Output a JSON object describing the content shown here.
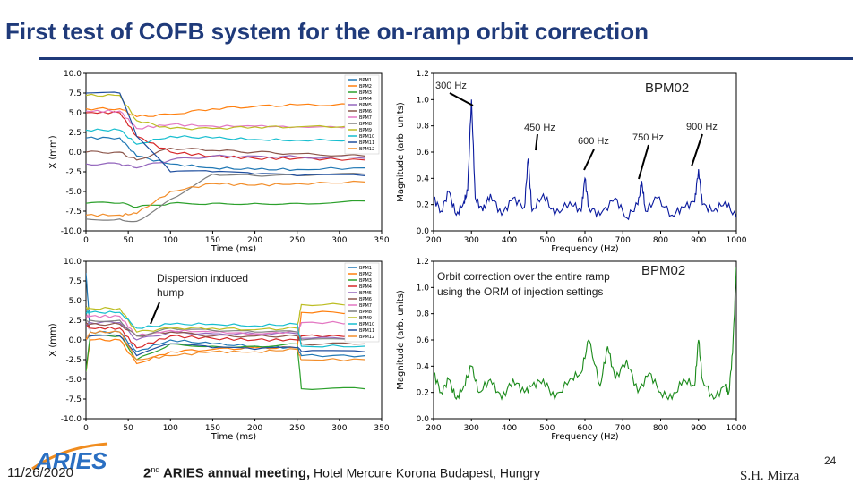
{
  "slide": {
    "title": "First test of COFB system for the on-ramp orbit correction",
    "date": "11/26/2020",
    "meeting_ord": "2",
    "meeting_sup": "nd",
    "meeting_main": " ARIES annual meeting,",
    "meeting_rest": " Hotel Mercure Korona Budapest, Hungry",
    "author": "S.H. Mirza",
    "page": "24",
    "logo_text": "ARIES"
  },
  "annotations": {
    "hz300": "300 Hz",
    "hz450": "450 Hz",
    "hz600": "600 Hz",
    "hz750": "750 Hz",
    "hz900": "900 Hz",
    "bpm_top": "BPM02",
    "bpm_bottom": "BPM02",
    "dispersion_1": "Dispersion induced",
    "dispersion_2": "hump",
    "orbit_1": "Orbit correction over the entire ramp",
    "orbit_2": "using the ORM of injection settings"
  },
  "chart_data": [
    {
      "type": "line",
      "xlabel": "Time (ms)",
      "ylabel": "X (mm)",
      "xlim": [
        0,
        350
      ],
      "ylim": [
        -10,
        10
      ],
      "xticks": [
        0,
        50,
        100,
        150,
        200,
        250,
        300,
        350
      ],
      "yticks": [
        10.0,
        7.5,
        5.0,
        2.5,
        0.0,
        -2.5,
        -5.0,
        -7.5,
        -10.0
      ],
      "legend": "top-right",
      "series": [
        {
          "name": "BPM1",
          "color": "#1f77b4",
          "x": [
            0,
            40,
            60,
            100,
            150,
            200,
            250,
            330
          ],
          "y": [
            1.8,
            1.8,
            -0.5,
            -1.5,
            -2.0,
            -2.2,
            -2.2,
            -2.0
          ]
        },
        {
          "name": "BPM2",
          "color": "#ff7f0e",
          "x": [
            0,
            40,
            60,
            100,
            150,
            200,
            250,
            330
          ],
          "y": [
            5.5,
            5.5,
            4.5,
            4.8,
            5.5,
            5.8,
            6.0,
            6.0
          ]
        },
        {
          "name": "BPM3",
          "color": "#2ca02c",
          "x": [
            0,
            40,
            60,
            100,
            150,
            200,
            250,
            330
          ],
          "y": [
            -6.5,
            -6.5,
            -7.0,
            -6.5,
            -6.5,
            -6.5,
            -6.5,
            -6.2
          ]
        },
        {
          "name": "BPM4",
          "color": "#d62728",
          "x": [
            0,
            40,
            60,
            100,
            150,
            200,
            250,
            330
          ],
          "y": [
            5.0,
            5.0,
            2.0,
            0.0,
            -0.5,
            -0.8,
            -0.8,
            -1.0
          ]
        },
        {
          "name": "BPM5",
          "color": "#9467bd",
          "x": [
            0,
            40,
            60,
            100,
            150,
            200,
            250,
            330
          ],
          "y": [
            -1.5,
            -1.5,
            -2.0,
            -1.0,
            -0.5,
            -0.5,
            -0.6,
            -0.8
          ]
        },
        {
          "name": "BPM6",
          "color": "#8c564b",
          "x": [
            0,
            40,
            60,
            100,
            150,
            200,
            250,
            330
          ],
          "y": [
            0.0,
            0.0,
            -1.0,
            0.5,
            0.2,
            0.0,
            -0.2,
            -0.5
          ]
        },
        {
          "name": "BPM7",
          "color": "#e377c2",
          "x": [
            0,
            40,
            60,
            100,
            150,
            200,
            250,
            330
          ],
          "y": [
            5.2,
            5.2,
            3.0,
            3.5,
            3.3,
            3.3,
            3.2,
            3.2
          ]
        },
        {
          "name": "BPM8",
          "color": "#7f7f7f",
          "x": [
            0,
            40,
            60,
            100,
            150,
            200,
            250,
            330
          ],
          "y": [
            -8.5,
            -8.5,
            -8.8,
            -6.0,
            -2.8,
            -3.0,
            -3.0,
            -2.8
          ]
        },
        {
          "name": "BPM9",
          "color": "#bcbd22",
          "x": [
            0,
            40,
            60,
            100,
            150,
            200,
            250,
            330
          ],
          "y": [
            7.2,
            7.2,
            4.0,
            3.0,
            3.0,
            3.2,
            3.2,
            3.3
          ]
        },
        {
          "name": "BPM10",
          "color": "#17becf",
          "x": [
            0,
            40,
            60,
            100,
            150,
            200,
            250,
            330
          ],
          "y": [
            2.8,
            2.8,
            1.0,
            2.0,
            1.8,
            1.6,
            1.5,
            1.5
          ]
        },
        {
          "name": "BPM11",
          "color": "#1f4e9e",
          "x": [
            0,
            40,
            60,
            100,
            150,
            200,
            250,
            330
          ],
          "y": [
            7.5,
            7.5,
            2.0,
            -2.5,
            -2.5,
            -2.8,
            -3.0,
            -3.0
          ]
        },
        {
          "name": "BPM12",
          "color": "#f28e2b",
          "x": [
            0,
            40,
            60,
            100,
            150,
            200,
            250,
            330
          ],
          "y": [
            -8.0,
            -8.0,
            -7.8,
            -5.0,
            -4.0,
            -4.2,
            -4.0,
            -3.8
          ]
        }
      ]
    },
    {
      "type": "line",
      "xlabel": "Frequency (Hz)",
      "ylabel": "Magnitude (arb. units)",
      "xlim": [
        200,
        1000
      ],
      "ylim": [
        0,
        1.2
      ],
      "xticks": [
        200,
        300,
        400,
        500,
        600,
        700,
        800,
        900,
        1000
      ],
      "yticks": [
        0.0,
        0.2,
        0.4,
        0.6,
        0.8,
        1.0,
        1.2
      ],
      "series": [
        {
          "name": "",
          "color": "#0a1a9e",
          "x": [
            200,
            220,
            240,
            260,
            280,
            290,
            300,
            310,
            330,
            350,
            380,
            410,
            440,
            450,
            460,
            490,
            520,
            560,
            590,
            600,
            610,
            640,
            680,
            710,
            740,
            750,
            760,
            790,
            830,
            860,
            890,
            900,
            910,
            940,
            970,
            1000
          ],
          "y": [
            0.25,
            0.15,
            0.3,
            0.12,
            0.22,
            0.3,
            1.0,
            0.25,
            0.15,
            0.28,
            0.12,
            0.25,
            0.18,
            0.55,
            0.15,
            0.28,
            0.12,
            0.22,
            0.15,
            0.4,
            0.18,
            0.12,
            0.25,
            0.1,
            0.2,
            0.38,
            0.15,
            0.25,
            0.12,
            0.18,
            0.22,
            0.47,
            0.2,
            0.15,
            0.22,
            0.1
          ]
        }
      ]
    },
    {
      "type": "line",
      "xlabel": "Time (ms)",
      "ylabel": "X (mm)",
      "xlim": [
        0,
        350
      ],
      "ylim": [
        -10,
        10
      ],
      "xticks": [
        0,
        50,
        100,
        150,
        200,
        250,
        300,
        350
      ],
      "yticks": [
        10.0,
        7.5,
        5.0,
        2.5,
        0.0,
        -2.5,
        -5.0,
        -7.5,
        -10.0
      ],
      "legend": "top-right",
      "series": [
        {
          "name": "BPM1",
          "color": "#1f77b4",
          "x": [
            0,
            5,
            40,
            60,
            100,
            150,
            200,
            250,
            255,
            330
          ],
          "y": [
            8.5,
            1.0,
            1.0,
            -1.5,
            0.0,
            -0.5,
            -0.8,
            -1.0,
            -2.0,
            -2.0
          ]
        },
        {
          "name": "BPM2",
          "color": "#ff7f0e",
          "x": [
            0,
            5,
            40,
            60,
            100,
            150,
            200,
            250,
            255,
            330
          ],
          "y": [
            -4.0,
            0.0,
            0.0,
            -3.0,
            -1.5,
            -1.2,
            -1.0,
            -1.0,
            3.5,
            3.5
          ]
        },
        {
          "name": "BPM3",
          "color": "#2ca02c",
          "x": [
            0,
            5,
            40,
            60,
            100,
            150,
            200,
            250,
            255,
            330
          ],
          "y": [
            -4.0,
            0.5,
            0.5,
            -2.5,
            -0.5,
            -0.8,
            -0.8,
            -0.5,
            -6.2,
            -6.2
          ]
        },
        {
          "name": "BPM4",
          "color": "#d62728",
          "x": [
            0,
            5,
            40,
            60,
            100,
            150,
            200,
            250,
            255,
            330
          ],
          "y": [
            2.0,
            1.5,
            1.5,
            -1.0,
            0.5,
            0.2,
            0.0,
            0.0,
            0.5,
            0.5
          ]
        },
        {
          "name": "BPM5",
          "color": "#9467bd",
          "x": [
            0,
            5,
            40,
            60,
            100,
            150,
            200,
            250,
            255,
            330
          ],
          "y": [
            2.0,
            2.2,
            2.2,
            0.0,
            1.0,
            0.8,
            0.8,
            0.8,
            0.2,
            0.2
          ]
        },
        {
          "name": "BPM6",
          "color": "#8c564b",
          "x": [
            0,
            5,
            40,
            60,
            100,
            150,
            200,
            250,
            255,
            330
          ],
          "y": [
            2.0,
            2.0,
            2.0,
            0.5,
            1.0,
            0.5,
            0.5,
            0.5,
            -0.5,
            -0.5
          ]
        },
        {
          "name": "BPM7",
          "color": "#e377c2",
          "x": [
            0,
            5,
            40,
            60,
            100,
            150,
            200,
            250,
            255,
            330
          ],
          "y": [
            3.0,
            3.0,
            3.0,
            0.5,
            1.2,
            1.0,
            0.8,
            1.0,
            2.2,
            2.2
          ]
        },
        {
          "name": "BPM8",
          "color": "#7f7f7f",
          "x": [
            0,
            5,
            40,
            60,
            100,
            150,
            200,
            250,
            255,
            330
          ],
          "y": [
            2.5,
            2.5,
            2.5,
            0.5,
            1.5,
            1.2,
            1.0,
            1.0,
            0.0,
            0.0
          ]
        },
        {
          "name": "BPM9",
          "color": "#bcbd22",
          "x": [
            0,
            5,
            40,
            60,
            100,
            150,
            200,
            250,
            255,
            330
          ],
          "y": [
            4.0,
            4.0,
            4.0,
            1.0,
            1.5,
            1.5,
            1.3,
            1.5,
            4.5,
            4.5
          ]
        },
        {
          "name": "BPM10",
          "color": "#17becf",
          "x": [
            0,
            5,
            40,
            60,
            100,
            150,
            200,
            250,
            255,
            330
          ],
          "y": [
            3.5,
            3.5,
            3.5,
            1.5,
            2.0,
            2.0,
            1.8,
            2.0,
            -0.8,
            -0.8
          ]
        },
        {
          "name": "BPM11",
          "color": "#1f4e9e",
          "x": [
            0,
            5,
            40,
            60,
            100,
            150,
            200,
            250,
            255,
            330
          ],
          "y": [
            0.0,
            0.5,
            0.5,
            -2.0,
            -0.5,
            -1.0,
            -1.2,
            -1.0,
            -1.5,
            -1.5
          ]
        },
        {
          "name": "BPM12",
          "color": "#f28e2b",
          "x": [
            0,
            5,
            40,
            60,
            100,
            150,
            200,
            250,
            255,
            330
          ],
          "y": [
            0.0,
            1.0,
            1.0,
            -2.5,
            -2.0,
            -1.5,
            -1.5,
            -1.2,
            -2.5,
            -2.5
          ]
        }
      ]
    },
    {
      "type": "line",
      "xlabel": "Frequency (Hz)",
      "ylabel": "Magnitude (arb. units)",
      "xlim": [
        200,
        1000
      ],
      "ylim": [
        0,
        1.2
      ],
      "xticks": [
        200,
        300,
        400,
        500,
        600,
        700,
        800,
        900,
        1000
      ],
      "yticks": [
        0.0,
        0.2,
        0.4,
        0.6,
        0.8,
        1.0,
        1.2
      ],
      "series": [
        {
          "name": "",
          "color": "#1a8a1a",
          "x": [
            200,
            220,
            240,
            260,
            280,
            300,
            320,
            350,
            380,
            410,
            440,
            460,
            490,
            520,
            560,
            590,
            610,
            640,
            660,
            680,
            710,
            740,
            770,
            800,
            830,
            860,
            890,
            900,
            910,
            940,
            970,
            980,
            990,
            1000
          ],
          "y": [
            0.35,
            0.2,
            0.3,
            0.15,
            0.25,
            0.4,
            0.2,
            0.3,
            0.15,
            0.3,
            0.2,
            0.25,
            0.3,
            0.15,
            0.3,
            0.35,
            0.6,
            0.25,
            0.55,
            0.3,
            0.45,
            0.2,
            0.35,
            0.2,
            0.15,
            0.3,
            0.25,
            0.6,
            0.3,
            0.15,
            0.25,
            0.2,
            0.5,
            1.15
          ]
        }
      ]
    }
  ]
}
